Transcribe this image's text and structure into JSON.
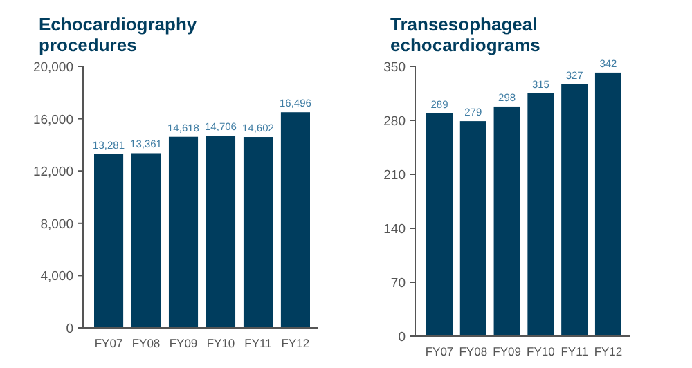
{
  "chart_data": [
    {
      "type": "bar",
      "title": "Echocardiography procedures",
      "categories": [
        "FY07",
        "FY08",
        "FY09",
        "FY10",
        "FY11",
        "FY12"
      ],
      "values": [
        13281,
        13361,
        14618,
        14706,
        14602,
        16496
      ],
      "color": "#003d5e",
      "ylim": [
        0,
        20000
      ],
      "yticks": [
        {
          "value": 0,
          "label": "0"
        },
        {
          "value": 4000,
          "label": "4,000"
        },
        {
          "value": 8000,
          "label": "8,000"
        },
        {
          "value": 12000,
          "label": "12,000"
        },
        {
          "value": 16000,
          "label": "16,000"
        },
        {
          "value": 20000,
          "label": "20,000"
        }
      ],
      "value_labels": [
        "13,281",
        "13,361",
        "14,618",
        "14,706",
        "14,602",
        "16,496"
      ]
    },
    {
      "type": "bar",
      "title": "Transesophageal echocardiograms",
      "categories": [
        "FY07",
        "FY08",
        "FY09",
        "FY10",
        "FY11",
        "FY12"
      ],
      "values": [
        289,
        279,
        298,
        315,
        327,
        342
      ],
      "color": "#003d5e",
      "ylim": [
        0,
        350
      ],
      "yticks": [
        0,
        70,
        140,
        210,
        280,
        350
      ],
      "data_labels": true
    }
  ]
}
